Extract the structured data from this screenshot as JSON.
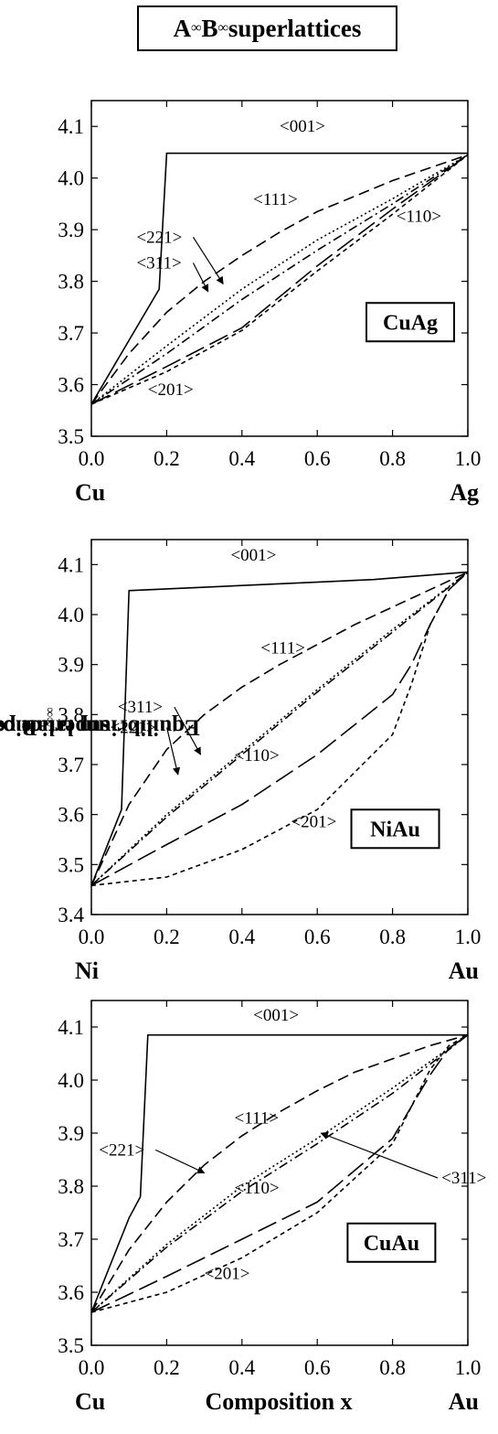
{
  "title": {
    "main": "A",
    "sub1": "∞",
    "mid": "B",
    "sub2": "∞",
    "tail": " superlattices"
  },
  "ylabel": {
    "pre": "Equilibrium latice parameters of A",
    "sub1": "∞",
    "mid": "B",
    "sub2": "∞",
    "post": " superlattices (Å)"
  },
  "xlabel": "Composition x",
  "chart_data": [
    {
      "type": "line",
      "label": "CuAg",
      "left_element": "Cu",
      "right_element": "Ag",
      "xlim": [
        0.0,
        1.0
      ],
      "ylim": [
        3.5,
        4.15
      ],
      "xticks": [
        "0.0",
        "0.2",
        "0.4",
        "0.6",
        "0.8",
        "1.0"
      ],
      "yticks": [
        "3.5",
        "3.6",
        "3.7",
        "3.8",
        "3.9",
        "4.0",
        "4.1"
      ],
      "series": [
        {
          "name": "<001>",
          "style": "solid",
          "x": [
            0,
            0.18,
            0.2,
            1.0
          ],
          "y": [
            3.562,
            3.785,
            4.048,
            4.048
          ]
        },
        {
          "name": "<111>",
          "style": "dash",
          "x": [
            0,
            0.1,
            0.2,
            0.3,
            0.4,
            0.5,
            0.6,
            0.7,
            0.8,
            0.9,
            1.0
          ],
          "y": [
            3.562,
            3.66,
            3.74,
            3.8,
            3.85,
            3.895,
            3.935,
            3.965,
            3.995,
            4.02,
            4.045
          ]
        },
        {
          "name": "<221>",
          "style": "dot",
          "x": [
            0,
            0.2,
            0.4,
            0.6,
            0.8,
            1.0
          ],
          "y": [
            3.562,
            3.675,
            3.785,
            3.88,
            3.96,
            4.045
          ]
        },
        {
          "name": "<311>",
          "style": "dashdot",
          "x": [
            0,
            0.2,
            0.4,
            0.6,
            0.8,
            1.0
          ],
          "y": [
            3.562,
            3.66,
            3.765,
            3.86,
            3.95,
            4.045
          ]
        },
        {
          "name": "<110>",
          "style": "longdash",
          "x": [
            0,
            0.2,
            0.4,
            0.6,
            0.8,
            1.0
          ],
          "y": [
            3.562,
            3.635,
            3.71,
            3.83,
            3.94,
            4.045
          ]
        },
        {
          "name": "<201>",
          "style": "shortdash",
          "x": [
            0,
            0.2,
            0.4,
            0.6,
            0.8,
            1.0
          ],
          "y": [
            3.562,
            3.625,
            3.705,
            3.82,
            3.93,
            4.045
          ]
        }
      ],
      "annotations": [
        "<001>",
        "<111>",
        "<221>",
        "<311>",
        "<110>",
        "<201>"
      ]
    },
    {
      "type": "line",
      "label": "NiAu",
      "left_element": "Ni",
      "right_element": "Au",
      "xlim": [
        0.0,
        1.0
      ],
      "ylim": [
        3.4,
        4.15
      ],
      "xticks": [
        "0.0",
        "0.2",
        "0.4",
        "0.6",
        "0.8",
        "1.0"
      ],
      "yticks": [
        "3.4",
        "3.5",
        "3.6",
        "3.7",
        "3.8",
        "3.9",
        "4.0",
        "4.1"
      ],
      "series": [
        {
          "name": "<001>",
          "style": "solid",
          "x": [
            0,
            0.08,
            0.1,
            0.75,
            1.0
          ],
          "y": [
            3.458,
            3.61,
            4.048,
            4.07,
            4.085
          ]
        },
        {
          "name": "<111>",
          "style": "dash",
          "x": [
            0,
            0.1,
            0.2,
            0.3,
            0.4,
            0.5,
            0.6,
            0.7,
            0.8,
            0.9,
            1.0
          ],
          "y": [
            3.458,
            3.62,
            3.73,
            3.8,
            3.855,
            3.9,
            3.94,
            3.98,
            4.015,
            4.05,
            4.085
          ]
        },
        {
          "name": "<311>",
          "style": "dot",
          "x": [
            0,
            0.2,
            0.4,
            0.6,
            0.8,
            1.0
          ],
          "y": [
            3.458,
            3.6,
            3.725,
            3.85,
            3.97,
            4.085
          ]
        },
        {
          "name": "<221>",
          "style": "dashdot",
          "x": [
            0,
            0.2,
            0.4,
            0.6,
            0.8,
            1.0
          ],
          "y": [
            3.458,
            3.595,
            3.72,
            3.845,
            3.965,
            4.085
          ]
        },
        {
          "name": "<110>",
          "style": "longdash",
          "x": [
            0,
            0.2,
            0.4,
            0.6,
            0.8,
            0.85,
            0.9,
            0.95,
            1.0
          ],
          "y": [
            3.458,
            3.54,
            3.62,
            3.72,
            3.84,
            3.9,
            3.98,
            4.05,
            4.085
          ]
        },
        {
          "name": "<201>",
          "style": "shortdash",
          "x": [
            0,
            0.2,
            0.4,
            0.6,
            0.8,
            0.85,
            0.9,
            0.95,
            1.0
          ],
          "y": [
            3.458,
            3.475,
            3.53,
            3.61,
            3.76,
            3.86,
            3.98,
            4.05,
            4.085
          ]
        }
      ],
      "annotations": [
        "<001>",
        "<111>",
        "<311>",
        "<221>",
        "<110>",
        "<201>"
      ]
    },
    {
      "type": "line",
      "label": "CuAu",
      "left_element": "Cu",
      "right_element": "Au",
      "xlim": [
        0.0,
        1.0
      ],
      "ylim": [
        3.5,
        4.15
      ],
      "xticks": [
        "0.0",
        "0.2",
        "0.4",
        "0.6",
        "0.8",
        "1.0"
      ],
      "yticks": [
        "3.5",
        "3.6",
        "3.7",
        "3.8",
        "3.9",
        "4.0",
        "4.1"
      ],
      "series": [
        {
          "name": "<001>",
          "style": "solid",
          "x": [
            0,
            0.1,
            0.13,
            0.15,
            1.0
          ],
          "y": [
            3.562,
            3.74,
            3.78,
            4.085,
            4.085
          ]
        },
        {
          "name": "<111>",
          "style": "dash",
          "x": [
            0,
            0.1,
            0.2,
            0.3,
            0.4,
            0.5,
            0.6,
            0.7,
            0.8,
            0.9,
            1.0
          ],
          "y": [
            3.562,
            3.68,
            3.77,
            3.84,
            3.895,
            3.94,
            3.98,
            4.015,
            4.04,
            4.065,
            4.085
          ]
        },
        {
          "name": "<221>",
          "style": "dot",
          "x": [
            0,
            0.2,
            0.4,
            0.6,
            0.8,
            1.0
          ],
          "y": [
            3.562,
            3.69,
            3.8,
            3.89,
            3.985,
            4.085
          ]
        },
        {
          "name": "<311>",
          "style": "dashdot",
          "x": [
            0,
            0.2,
            0.4,
            0.6,
            0.8,
            1.0
          ],
          "y": [
            3.562,
            3.685,
            3.79,
            3.88,
            3.975,
            4.085
          ]
        },
        {
          "name": "<110>",
          "style": "longdash",
          "x": [
            0,
            0.2,
            0.4,
            0.6,
            0.8,
            0.85,
            0.9,
            0.95,
            1.0
          ],
          "y": [
            3.562,
            3.63,
            3.7,
            3.77,
            3.89,
            3.95,
            4.01,
            4.06,
            4.085
          ]
        },
        {
          "name": "<201>",
          "style": "shortdash",
          "x": [
            0,
            0.2,
            0.4,
            0.6,
            0.8,
            0.85,
            0.9,
            0.95,
            1.0
          ],
          "y": [
            3.562,
            3.6,
            3.665,
            3.75,
            3.88,
            3.95,
            4.02,
            4.065,
            4.085
          ]
        }
      ],
      "annotations": [
        "<001>",
        "<111>",
        "<221>",
        "<311>",
        "<110>",
        "<201>"
      ]
    }
  ]
}
